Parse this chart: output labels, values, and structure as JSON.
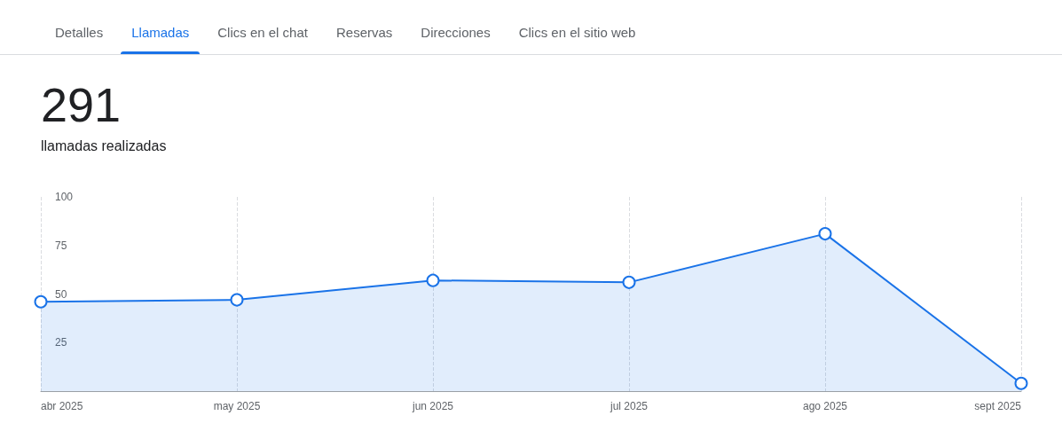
{
  "chart_data": {
    "type": "area",
    "title": "291",
    "subtitle": "llamadas realizadas",
    "annotations": [
      "Detalles",
      "Llamadas",
      "Clics en el chat",
      "Reservas",
      "Direcciones",
      "Clics en el sitio web"
    ],
    "categories": [
      "abr 2025",
      "may 2025",
      "jun 2025",
      "jul 2025",
      "ago 2025",
      "sept 2025"
    ],
    "series": [
      {
        "color": "#1a73e8",
        "values": [
          46,
          47,
          57,
          56,
          81,
          4
        ]
      }
    ],
    "ylim": [
      0,
      100
    ],
    "yticks": [
      25,
      50,
      75,
      100
    ],
    "grid": "x",
    "marker": "circle",
    "line_style": "solid"
  }
}
